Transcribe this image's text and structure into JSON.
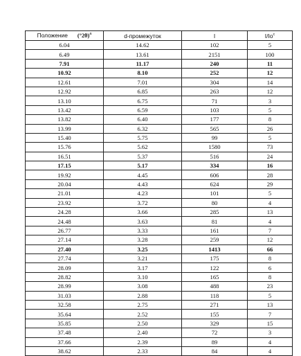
{
  "table": {
    "headers": {
      "position_label": "Положение",
      "position_unit": "(°2θ)",
      "position_sup": "a",
      "d_spacing": "d-промежуток",
      "intensity": "I",
      "rel_intensity": "I/Io",
      "rel_intensity_sup": "c"
    },
    "rows": [
      {
        "pos": "6.04",
        "d": "14.62",
        "i": "102",
        "rel": "5",
        "bold": false
      },
      {
        "pos": "6.49",
        "d": "13.61",
        "i": "2151",
        "rel": "100",
        "bold": false
      },
      {
        "pos": "7.91",
        "d": "11.17",
        "i": "240",
        "rel": "11",
        "bold": true
      },
      {
        "pos": "10.92",
        "d": "8.10",
        "i": "252",
        "rel": "12",
        "bold": true
      },
      {
        "pos": "12.61",
        "d": "7.01",
        "i": "304",
        "rel": "14",
        "bold": false
      },
      {
        "pos": "12.92",
        "d": "6.85",
        "i": "263",
        "rel": "12",
        "bold": false
      },
      {
        "pos": "13.10",
        "d": "6.75",
        "i": "71",
        "rel": "3",
        "bold": false
      },
      {
        "pos": "13.42",
        "d": "6.59",
        "i": "103",
        "rel": "5",
        "bold": false
      },
      {
        "pos": "13.82",
        "d": "6.40",
        "i": "177",
        "rel": "8",
        "bold": false
      },
      {
        "pos": "13.99",
        "d": "6.32",
        "i": "565",
        "rel": "26",
        "bold": false
      },
      {
        "pos": "15.40",
        "d": "5.75",
        "i": "99",
        "rel": "5",
        "bold": false
      },
      {
        "pos": "15.76",
        "d": "5.62",
        "i": "1580",
        "rel": "73",
        "bold": false
      },
      {
        "pos": "16.51",
        "d": "5.37",
        "i": "516",
        "rel": "24",
        "bold": false
      },
      {
        "pos": "17.15",
        "d": "5.17",
        "i": "334",
        "rel": "16",
        "bold": true
      },
      {
        "pos": "19.92",
        "d": "4.45",
        "i": "606",
        "rel": "28",
        "bold": false
      },
      {
        "pos": "20.04",
        "d": "4.43",
        "i": "624",
        "rel": "29",
        "bold": false
      },
      {
        "pos": "21.01",
        "d": "4.23",
        "i": "101",
        "rel": "5",
        "bold": false
      },
      {
        "pos": "23.92",
        "d": "3.72",
        "i": "80",
        "rel": "4",
        "bold": false
      },
      {
        "pos": "24.28",
        "d": "3.66",
        "i": "285",
        "rel": "13",
        "bold": false
      },
      {
        "pos": "24.48",
        "d": "3.63",
        "i": "81",
        "rel": "4",
        "bold": false
      },
      {
        "pos": "26.77",
        "d": "3.33",
        "i": "161",
        "rel": "7",
        "bold": false
      },
      {
        "pos": "27.14",
        "d": "3.28",
        "i": "259",
        "rel": "12",
        "bold": false
      },
      {
        "pos": "27.40",
        "d": "3.25",
        "i": "1413",
        "rel": "66",
        "bold": true
      },
      {
        "pos": "27.74",
        "d": "3.21",
        "i": "175",
        "rel": "8",
        "bold": false
      },
      {
        "pos": "28.09",
        "d": "3.17",
        "i": "122",
        "rel": "6",
        "bold": false
      },
      {
        "pos": "28.82",
        "d": "3.10",
        "i": "165",
        "rel": "8",
        "bold": false
      },
      {
        "pos": "28.99",
        "d": "3.08",
        "i": "488",
        "rel": "23",
        "bold": false
      },
      {
        "pos": "31.03",
        "d": "2.88",
        "i": "118",
        "rel": "5",
        "bold": false
      },
      {
        "pos": "32.58",
        "d": "2.75",
        "i": "271",
        "rel": "13",
        "bold": false
      },
      {
        "pos": "35.64",
        "d": "2.52",
        "i": "155",
        "rel": "7",
        "bold": false
      },
      {
        "pos": "35.85",
        "d": "2.50",
        "i": "329",
        "rel": "15",
        "bold": false
      },
      {
        "pos": "37.48",
        "d": "2.40",
        "i": "72",
        "rel": "3",
        "bold": false
      },
      {
        "pos": "37.66",
        "d": "2.39",
        "i": "89",
        "rel": "4",
        "bold": false
      },
      {
        "pos": "38.62",
        "d": "2.33",
        "i": "84",
        "rel": "4",
        "bold": false
      }
    ]
  }
}
